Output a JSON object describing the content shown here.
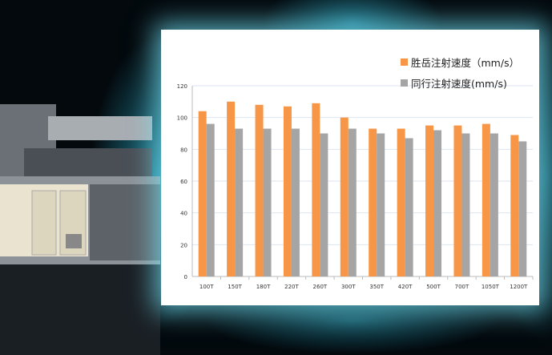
{
  "chart_data": {
    "type": "bar",
    "categories": [
      "100T",
      "150T",
      "180T",
      "220T",
      "260T",
      "300T",
      "350T",
      "420T",
      "500T",
      "700T",
      "1050T",
      "1200T"
    ],
    "series": [
      {
        "name": "胜岳注射速度（mm/s）",
        "color": "#f79646",
        "values": [
          104,
          110,
          108,
          107,
          109,
          100,
          93,
          93,
          95,
          95,
          96,
          89
        ]
      },
      {
        "name": "同行注射速度(mm/s)",
        "color": "#a5a5a5",
        "values": [
          96,
          93,
          93,
          93,
          90,
          93,
          90,
          87,
          92,
          90,
          90,
          85
        ]
      }
    ],
    "ylim": [
      0,
      120
    ],
    "yticks": [
      0,
      20,
      40,
      60,
      80,
      100,
      120
    ],
    "grid": true,
    "legend": "top-right"
  }
}
